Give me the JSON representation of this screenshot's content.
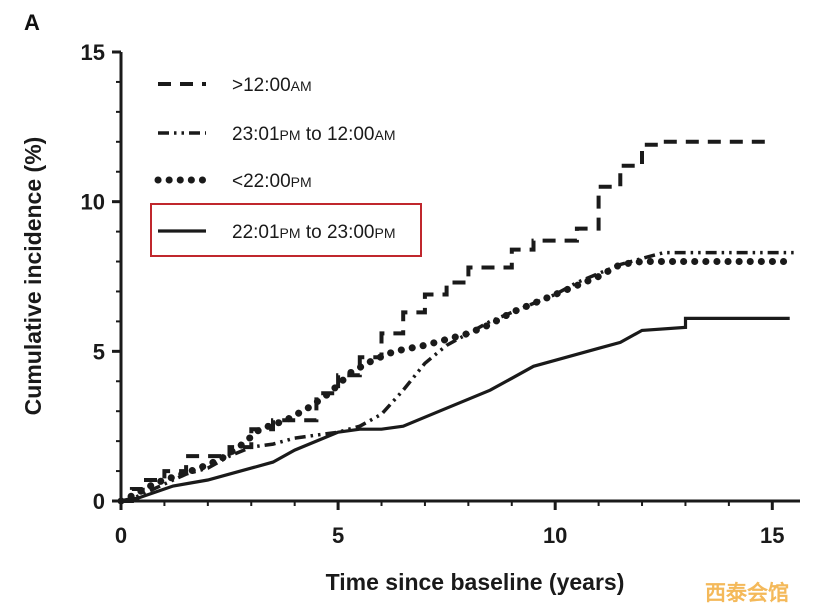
{
  "chart_data": {
    "type": "line",
    "panel_label": "A",
    "title": "",
    "xlabel": "Time since baseline (years)",
    "ylabel": "Cumulative incidence (%)",
    "xlim": [
      0,
      15.5
    ],
    "ylim": [
      0,
      15
    ],
    "xticks": [
      "0",
      "5",
      "10",
      "15"
    ],
    "yticks": [
      "0",
      "5",
      "10",
      "15"
    ],
    "grid": false,
    "legend_position": "top-left",
    "highlighted_series": "22:01PM to 23:00PM",
    "highlight_color": "#c0272d",
    "watermark": "西泰会馆",
    "series": [
      {
        "name": ">12:00AM",
        "name_main": [
          ">12:00",
          ""
        ],
        "name_small": [
          "AM",
          ""
        ],
        "style": "dashed",
        "color": "#1a1a1a",
        "x": [
          0.0,
          0.25,
          0.25,
          0.5,
          0.5,
          1.0,
          1.0,
          1.5,
          1.5,
          2.5,
          2.5,
          3.0,
          3.0,
          3.5,
          3.5,
          4.5,
          4.5,
          5.0,
          5.0,
          5.5,
          5.5,
          6.0,
          6.0,
          6.5,
          6.5,
          7.0,
          7.0,
          7.5,
          7.5,
          8.0,
          8.0,
          9.0,
          9.0,
          9.5,
          9.5,
          10.5,
          10.5,
          11.0,
          11.0,
          11.5,
          11.5,
          12.0,
          12.0,
          12.4,
          12.4,
          15.0
        ],
        "y": [
          0.0,
          0.0,
          0.4,
          0.4,
          0.7,
          0.7,
          1.0,
          1.0,
          1.5,
          1.5,
          1.8,
          1.8,
          2.4,
          2.4,
          2.7,
          2.7,
          3.6,
          3.6,
          4.2,
          4.2,
          4.8,
          4.8,
          5.6,
          5.6,
          6.3,
          6.3,
          6.9,
          6.9,
          7.3,
          7.3,
          7.8,
          7.8,
          8.4,
          8.4,
          8.7,
          8.7,
          9.1,
          9.1,
          10.5,
          10.5,
          11.2,
          11.2,
          11.9,
          11.9,
          12.0,
          12.0
        ]
      },
      {
        "name": "23:01PM to 12:00AM",
        "name_main": [
          "23:01",
          " to 12:00",
          ""
        ],
        "name_small": [
          "PM",
          "AM",
          ""
        ],
        "style": "dash-dot-dot",
        "color": "#1a1a1a",
        "x": [
          0.0,
          0.3,
          0.9,
          1.5,
          2.0,
          2.5,
          3.0,
          3.5,
          4.0,
          4.5,
          5.0,
          5.5,
          6.0,
          6.5,
          7.0,
          7.5,
          8.0,
          8.5,
          9.0,
          9.5,
          10.0,
          10.5,
          11.0,
          11.5,
          12.0,
          12.5,
          13.0,
          15.0,
          15.5
        ],
        "y": [
          0.0,
          0.1,
          0.5,
          0.9,
          1.1,
          1.5,
          1.8,
          1.9,
          2.1,
          2.2,
          2.3,
          2.5,
          2.9,
          3.7,
          4.6,
          5.2,
          5.6,
          6.0,
          6.3,
          6.6,
          6.9,
          7.3,
          7.6,
          7.9,
          8.1,
          8.3,
          8.3,
          8.3,
          8.3
        ]
      },
      {
        "name": "<22:00PM",
        "name_main": [
          "<22:00",
          ""
        ],
        "name_small": [
          "PM",
          ""
        ],
        "style": "dotted",
        "color": "#1a1a1a",
        "x": [
          0.0,
          0.3,
          0.8,
          1.2,
          1.8,
          2.3,
          2.8,
          3.2,
          3.8,
          4.3,
          4.8,
          5.3,
          5.8,
          6.3,
          7.0,
          7.5,
          8.0,
          8.5,
          9.0,
          9.5,
          10.0,
          10.5,
          11.0,
          11.5,
          12.0,
          13.0,
          14.0,
          15.5
        ],
        "y": [
          0.0,
          0.2,
          0.6,
          0.8,
          1.1,
          1.4,
          1.9,
          2.4,
          2.7,
          3.1,
          3.6,
          4.3,
          4.7,
          5.0,
          5.2,
          5.4,
          5.6,
          5.9,
          6.3,
          6.6,
          6.9,
          7.2,
          7.5,
          7.9,
          8.0,
          8.0,
          8.0,
          8.0
        ]
      },
      {
        "name": "22:01PM to 23:00PM",
        "name_main": [
          "22:01",
          " to 23:00",
          ""
        ],
        "name_small": [
          "PM",
          "PM",
          ""
        ],
        "style": "solid",
        "color": "#1a1a1a",
        "x": [
          0.0,
          0.4,
          0.8,
          1.2,
          1.6,
          2.0,
          2.5,
          3.0,
          3.5,
          4.0,
          4.5,
          5.0,
          5.5,
          6.0,
          6.5,
          7.0,
          7.5,
          8.0,
          8.5,
          9.0,
          9.5,
          10.0,
          10.5,
          11.0,
          11.5,
          12.0,
          13.0,
          13.0,
          15.4
        ],
        "y": [
          0.0,
          0.1,
          0.3,
          0.5,
          0.6,
          0.7,
          0.9,
          1.1,
          1.3,
          1.7,
          2.0,
          2.3,
          2.4,
          2.4,
          2.5,
          2.8,
          3.1,
          3.4,
          3.7,
          4.1,
          4.5,
          4.7,
          4.9,
          5.1,
          5.3,
          5.7,
          5.8,
          6.1,
          6.1
        ]
      }
    ]
  }
}
